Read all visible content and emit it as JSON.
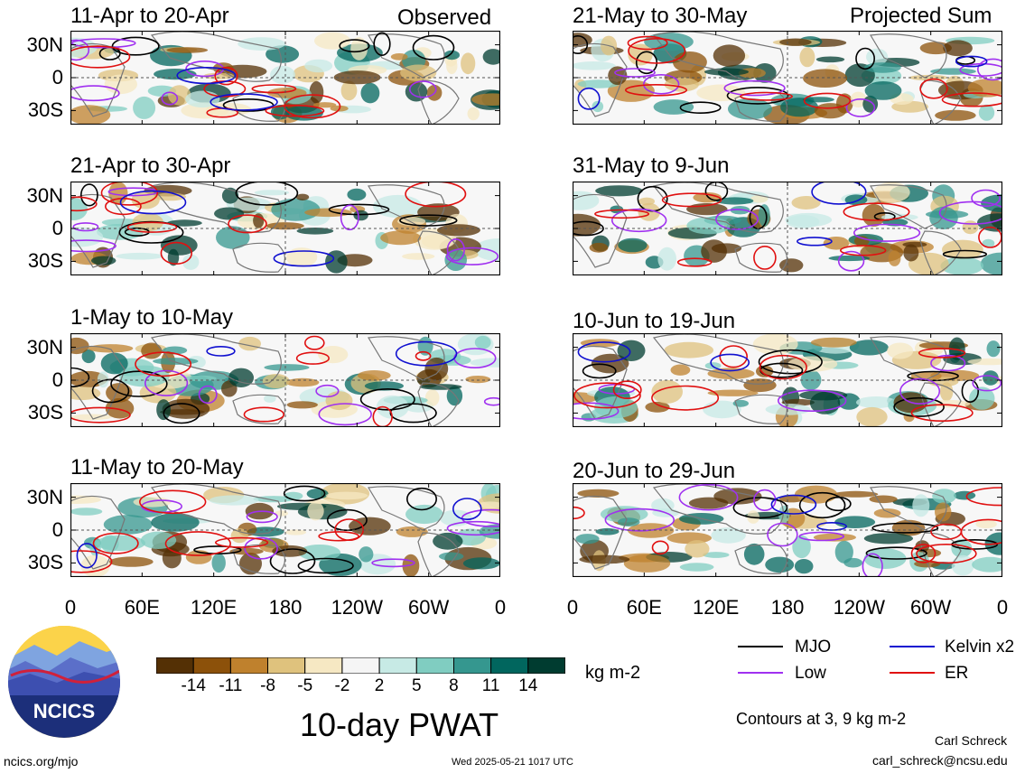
{
  "header": {
    "left_label": "Observed",
    "right_label": "Projected Sum"
  },
  "chart_data": {
    "type": "heatmap",
    "title": "10-day PWAT",
    "units": "kg m-2",
    "x_ticks": [
      "0",
      "60E",
      "120E",
      "180",
      "120W",
      "60W",
      "0"
    ],
    "y_ticks": [
      "30N",
      "0",
      "30S"
    ],
    "colorbar": {
      "labels": [
        "-14",
        "-11",
        "-8",
        "-5",
        "-2",
        "2",
        "5",
        "8",
        "11",
        "14"
      ],
      "colors": [
        "#543005",
        "#8c510a",
        "#bf812d",
        "#dfc27d",
        "#f6e8c3",
        "#f5f5f5",
        "#c7eae5",
        "#80cdc1",
        "#35978f",
        "#01665e",
        "#003c30"
      ]
    },
    "contours_note": "Contours at 3, 9 kg m-2",
    "legend": [
      {
        "name": "MJO",
        "color": "#000000"
      },
      {
        "name": "Kelvin x2",
        "color": "#1010d0"
      },
      {
        "name": "Low",
        "color": "#a030f0"
      },
      {
        "name": "ER",
        "color": "#e01010"
      }
    ],
    "panels_observed": [
      {
        "period": "11-Apr to 20-Apr"
      },
      {
        "period": "21-Apr to 30-Apr"
      },
      {
        "period": "1-May to 10-May"
      },
      {
        "period": "11-May to 20-May"
      }
    ],
    "panels_projected": [
      {
        "period": "21-May to 30-May"
      },
      {
        "period": "31-May to 9-Jun"
      },
      {
        "period": "10-Jun to 19-Jun"
      },
      {
        "period": "20-Jun to 29-Jun"
      }
    ]
  },
  "logo": {
    "text": "NCICS"
  },
  "footer": {
    "site": "ncics.org/mjo",
    "timestamp": "Wed 2025-05-21 1017 UTC",
    "author": "Carl Schreck",
    "email": "carl_schreck@ncsu.edu"
  }
}
